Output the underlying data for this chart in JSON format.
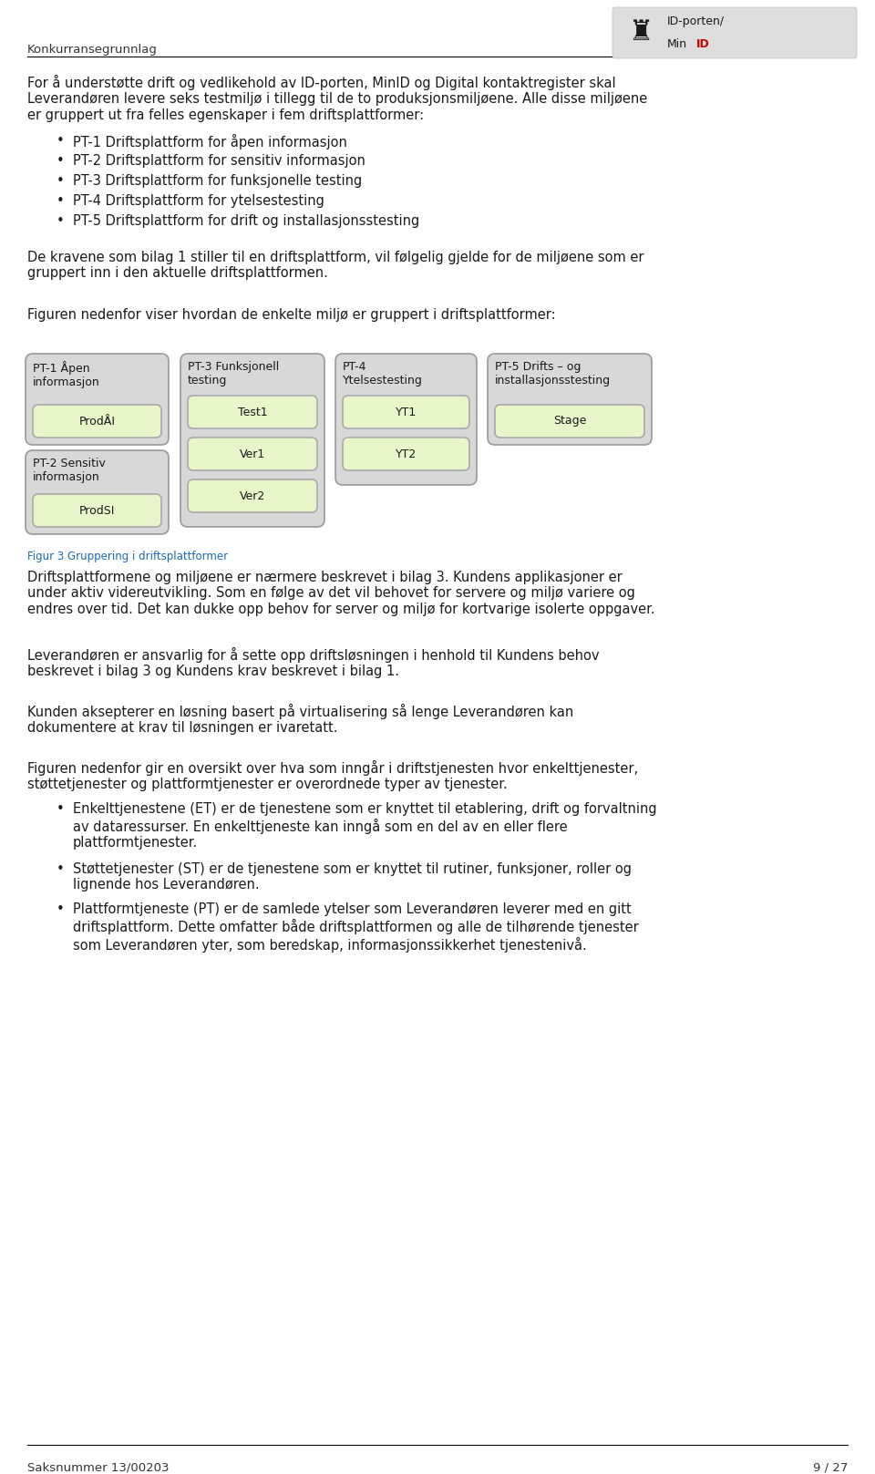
{
  "title_header": "Konkurransegrunnlag",
  "logo_text1": "ID-porten/",
  "logo_text2": "MinID",
  "page_footer_left": "Saksnummer 13/00203",
  "page_footer_right": "9 / 27",
  "para1": "For å understøtte drift og vedlikehold av ID-porten, MinID og Digital kontaktregister skal\nLeverandøren levere seks testmiljø i tillegg til de to produksjonsmiljøene. Alle disse miljøene\ner gruppert ut fra felles egenskaper i fem driftsplattformer:",
  "bullet_points": [
    "PT-1 Driftsplattform for åpen informasjon",
    "PT-2 Driftsplattform for sensitiv informasjon",
    "PT-3 Driftsplattform for funksjonelle testing",
    "PT-4 Driftsplattform for ytelsestesting",
    "PT-5 Driftsplattform for drift og installasjonsstesting"
  ],
  "para2": "De kravene som bilag 1 stiller til en driftsplattform, vil følgelig gjelde for de miljøene som er\ngruppert inn i den aktuelle driftsplattformen.",
  "para3": "Figuren nedenfor viser hvordan de enkelte miljø er gruppert i driftsplattformer:",
  "fig_caption": "Figur 3 Gruppering i driftsplattformer",
  "para4": "Driftsplattformene og miljøene er nærmere beskrevet i bilag 3. Kundens applikasjoner er\nunder aktiv videreutvikling. Som en følge av det vil behovet for servere og miljø variere og\nendres over tid. Det kan dukke opp behov for server og miljø for kortvarige isolerte oppgaver.",
  "para5": "Leverandøren er ansvarlig for å sette opp driftsløsningen i henhold til Kundens behov\nbeskrevet i bilag 3 og Kundens krav beskrevet i bilag 1.",
  "para6": "Kunden aksepterer en løsning basert på virtualisering så lenge Leverandøren kan\ndokumentere at krav til løsningen er ivaretatt.",
  "para7": "Figuren nedenfor gir en oversikt over hva som inngår i driftstjenesten hvor enkelttjenester,\nstøttetjenester og plattformtjenester er overordnede typer av tjenester.",
  "bullet_points2": [
    "Enkelttjenestene (ET) er de tjenestene som er knyttet til etablering, drift og forvaltning\nav dataressurser. En enkelttjeneste kan inngå som en del av en eller flere\nplattformtjenester.",
    "Støttetjenester (ST) er de tjenestene som er knyttet til rutiner, funksjoner, roller og\nlignende hos Leverandøren.",
    "Plattformtjeneste (PT) er de samlede ytelser som Leverandøren leverer med en gitt\ndriftsplattform. Dette omfatter både driftsplattformen og alle de tilhørende tjenester\nsom Leverandøren yter, som beredskap, informasjonssikkerhet tjenestenivå."
  ],
  "bg_color": "#ffffff",
  "text_color": "#1a1a1a",
  "header_line_color": "#000000",
  "footer_line_color": "#000000",
  "logo_bg": "#dddddd",
  "logo_red": "#cc0000",
  "caption_color": "#1a6bb5",
  "font_size_body": 10.5,
  "font_size_header": 9.5,
  "font_size_footer": 9.5,
  "font_size_caption": 8.5,
  "font_size_box_title": 9.0,
  "font_size_sub_box": 9.0,
  "box_fill": "#d8d8d8",
  "box_border": "#999999",
  "sub_box_fill": "#e8f5c8",
  "sub_box_border": "#aaaaaa"
}
